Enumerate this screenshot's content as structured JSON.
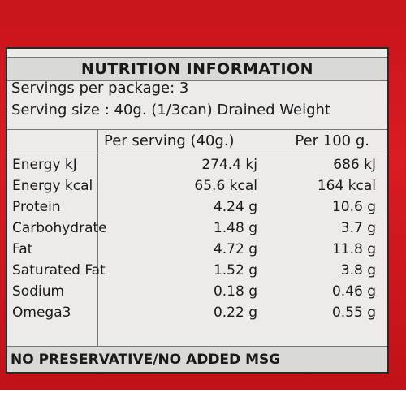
{
  "panel": {
    "title": "NUTRITION INFORMATION",
    "servings_per_package": "Servings per package: 3",
    "serving_size": "Serving size : 40g. (1/3can) Drained Weight",
    "col_per_serving": "Per serving (40g.)",
    "col_per_100g": "Per 100 g.",
    "rows": [
      {
        "nutrient": "Energy kJ",
        "per_serving": "274.4 kj",
        "per_100g": "686 kJ"
      },
      {
        "nutrient": "Energy kcal",
        "per_serving": "65.6 kcal",
        "per_100g": "164 kcal"
      },
      {
        "nutrient": "Protein",
        "per_serving": "4.24 g",
        "per_100g": "10.6 g"
      },
      {
        "nutrient": "Carbohydrate",
        "per_serving": "1.48 g",
        "per_100g": "3.7 g"
      },
      {
        "nutrient": "Fat",
        "per_serving": "4.72 g",
        "per_100g": "11.8 g"
      },
      {
        "nutrient": "Saturated Fat",
        "per_serving": "1.52 g",
        "per_100g": "3.8 g"
      },
      {
        "nutrient": "Sodium",
        "per_serving": "0.18 g",
        "per_100g": "0.46 g"
      },
      {
        "nutrient": "Omega3",
        "per_serving": "0.22 g",
        "per_100g": "0.55 g"
      }
    ],
    "footer": "NO PRESERVATIVE/NO ADDED MSG"
  },
  "colors": {
    "can_red": "#d81c22",
    "panel_background": "#ecebea"
  }
}
